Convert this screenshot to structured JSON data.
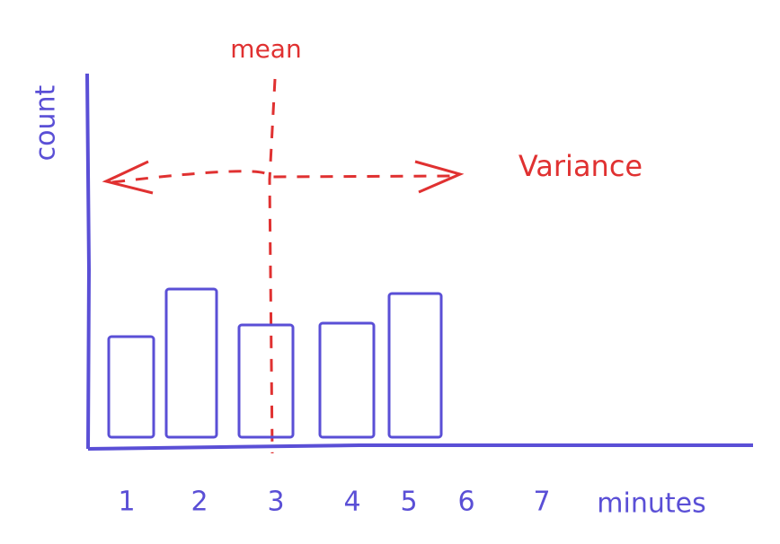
{
  "chart_data": {
    "type": "bar",
    "categories": [
      "1",
      "2",
      "3",
      "4",
      "5",
      "6",
      "7"
    ],
    "values": [
      120,
      173,
      133,
      135,
      168,
      null,
      null
    ],
    "color": "#5a4fd6",
    "annotation_color": "#e03131",
    "x_label": "minutes",
    "y_label": "count",
    "annotations": [
      "mean",
      "Variance"
    ],
    "ylim": [
      0,
      200
    ]
  }
}
